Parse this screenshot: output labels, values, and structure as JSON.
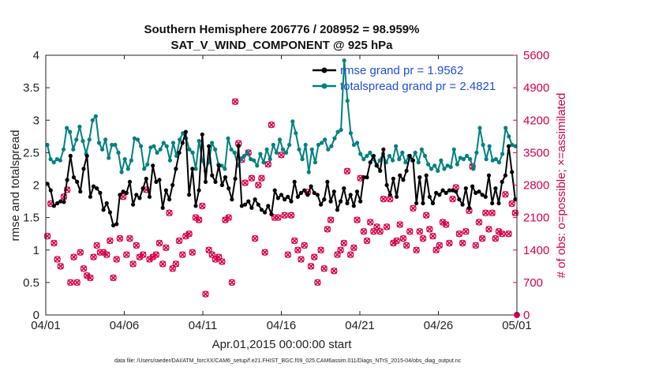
{
  "chart_data": {
    "type": "line",
    "title": "Southern Hemisphere 206776 / 208952 = 98.959%",
    "subtitle": "SAT_V_WIND_COMPONENT @ 925 hPa",
    "xlabel": "Apr.01,2015 00:00:00 start",
    "ylabel_left": "rmse and totalspread",
    "ylabel_right": "# of obs: o=possible; ×=assimilated",
    "x_ticks": [
      "04/01",
      "04/06",
      "04/11",
      "04/16",
      "04/21",
      "04/26",
      "05/01"
    ],
    "y_ticks_left": [
      "0",
      "0.5",
      "1",
      "1.5",
      "2",
      "2.5",
      "3",
      "3.5",
      "4"
    ],
    "y_ticks_right": [
      "0",
      "700",
      "1400",
      "2100",
      "2800",
      "3500",
      "4200",
      "4900",
      "5600"
    ],
    "ylim_left": [
      0,
      4
    ],
    "ylim_right": [
      0,
      5600
    ],
    "xlim_days": [
      0,
      30
    ],
    "grid": false,
    "legend_position": "top-right",
    "colors": {
      "rmse": "#000000",
      "spread": "#008080",
      "obs": "#d6004c",
      "legend_text": "#1f4fd6"
    },
    "series": [
      {
        "name": "rmse grand pr = 1.9562",
        "axis": "left",
        "values": [
          2.02,
          1.92,
          1.68,
          1.72,
          1.75,
          1.74,
          2.08,
          2.45,
          2.12,
          2.05,
          1.9,
          2.25,
          2.45,
          1.82,
          1.98,
          1.95,
          1.88,
          1.62,
          1.72,
          1.58,
          1.38,
          1.4,
          1.85,
          1.9,
          1.88,
          2.05,
          1.7,
          1.85,
          1.8,
          1.95,
          2.1,
          1.82,
          2.3,
          2.05,
          2.08,
          1.65,
          1.92,
          1.78,
          2.0,
          2.25,
          2.5,
          2.65,
          2.82,
          1.85,
          2.25,
          1.68,
          1.92,
          2.78,
          2.05,
          2.6,
          2.15,
          2.05,
          2.3,
          2.0,
          2.12,
          1.95,
          1.78,
          2.1,
          2.6,
          1.68,
          1.7,
          1.75,
          1.65,
          1.78,
          1.7,
          1.62,
          1.58,
          1.68,
          1.55,
          1.92,
          1.8,
          1.85,
          1.78,
          1.82,
          1.75,
          2.05,
          1.82,
          1.88,
          1.92,
          1.85,
          1.98,
          1.88,
          1.85,
          1.7,
          1.78,
          2.05,
          1.75,
          1.9,
          1.62,
          1.75,
          1.95,
          1.72,
          1.85,
          1.68,
          1.9,
          1.75,
          2.12,
          2.12,
          2.35,
          2.45,
          2.3,
          2.22,
          2.55,
          2.0,
          1.85,
          2.1,
          1.82,
          2.15,
          2.08,
          2.22,
          2.45,
          2.38,
          1.72,
          2.12,
          1.72,
          2.15,
          1.82,
          1.72,
          1.88,
          1.85,
          1.92,
          1.88,
          1.92,
          1.92,
          1.9,
          1.78,
          1.7,
          1.95,
          1.65,
          1.98,
          1.88,
          1.9,
          1.85,
          1.82,
          2.15,
          1.72,
          1.95,
          1.72,
          2.05,
          2.15,
          2.6,
          2.2,
          1.78
        ]
      },
      {
        "name": "totalspread grand pr = 2.4821",
        "axis": "left",
        "values": [
          2.62,
          2.4,
          2.35,
          2.4,
          2.38,
          2.55,
          2.88,
          2.82,
          2.55,
          2.7,
          2.9,
          2.68,
          2.48,
          2.7,
          3.0,
          3.06,
          2.65,
          2.55,
          2.7,
          2.42,
          2.62,
          2.62,
          2.5,
          2.2,
          2.4,
          2.25,
          2.38,
          2.72,
          2.7,
          2.6,
          2.25,
          2.32,
          2.58,
          2.6,
          2.5,
          2.55,
          2.65,
          2.6,
          2.38,
          2.65,
          2.45,
          2.7,
          2.8,
          2.72,
          2.55,
          2.5,
          2.25,
          2.68,
          2.38,
          2.22,
          2.35,
          2.65,
          2.55,
          2.32,
          2.3,
          2.25,
          2.72,
          2.55,
          2.5,
          2.3,
          2.4,
          2.45,
          2.5,
          2.4,
          2.38,
          2.3,
          2.48,
          2.35,
          2.55,
          2.4,
          2.62,
          2.5,
          2.7,
          2.55,
          2.5,
          2.62,
          2.98,
          2.8,
          2.55,
          2.4,
          2.62,
          2.2,
          2.55,
          2.35,
          2.62,
          2.65,
          2.7,
          2.55,
          2.6,
          2.72,
          2.82,
          2.85,
          3.92,
          3.3,
          2.8,
          2.62,
          2.65,
          2.48,
          2.4,
          2.45,
          2.5,
          2.4,
          2.3,
          2.38,
          2.48,
          2.35,
          2.45,
          2.38,
          2.6,
          2.4,
          2.5,
          2.35,
          2.45,
          2.38,
          2.5,
          2.35,
          2.55,
          2.45,
          2.32,
          2.25,
          2.3,
          2.22,
          2.38,
          2.25,
          2.3,
          2.28,
          2.55,
          2.32,
          2.42,
          2.4,
          2.45,
          2.4,
          2.25,
          2.5,
          2.88,
          2.62,
          2.4,
          2.6,
          2.38,
          2.4,
          2.35,
          2.48,
          2.88,
          2.75,
          2.62,
          2.6
        ]
      },
      {
        "name": "possible obs",
        "axis": "right",
        "values": [
          1700,
          2400,
          1550,
          1200,
          1050,
          2550,
          2700,
          700,
          1250,
          700,
          1350,
          1000,
          850,
          800,
          1250,
          1500,
          1350,
          1350,
          1300,
          1600,
          800,
          1200,
          1650,
          2550,
          1300,
          1650,
          1100,
          1500,
          1250,
          1300,
          2700,
          1200,
          1250,
          1300,
          1550,
          1100,
          1450,
          2200,
          1000,
          1100,
          1600,
          1300,
          1700,
          1750,
          1350,
          2100,
          2050,
          2350,
          450,
          1400,
          1300,
          1200,
          1250,
          1150,
          2050,
          2100,
          700,
          4600,
          3700,
          3350,
          2850,
          3500,
          2950,
          1650,
          2800,
          2950,
          1350,
          3250,
          4100,
          2100,
          2100,
          3450,
          2150,
          1300,
          2150,
          1600,
          1400,
          1200,
          1500,
          2650,
          1050,
          1250,
          700,
          1400,
          1000,
          1850,
          2050,
          950,
          1300,
          1400,
          1550,
          3100,
          1300,
          1450,
          2050,
          2950,
          1800,
          1600,
          2000,
          1800,
          1900,
          1800,
          2500,
          1900,
          2500,
          1550,
          1600,
          1950,
          1650,
          1500,
          1800,
          2300,
          1400,
          1800,
          1650,
          2150,
          1850,
          1700,
          1400,
          1500,
          2000,
          1950,
          1550,
          2500,
          2750,
          1750,
          1550,
          1800,
          2250,
          3200,
          1500,
          2000,
          1650,
          2200,
          1850,
          2200,
          1650,
          1800,
          1750,
          2600,
          1750,
          2400,
          2200
        ]
      }
    ]
  },
  "footer": "data file: /Users/raeder/DAI/ATM_forcXX/CAM6_setup/f.e21.FHIST_BGC.f09_025.CAM6assim.011/Diags_NTrS_2015-04/obs_diag_output.nc"
}
